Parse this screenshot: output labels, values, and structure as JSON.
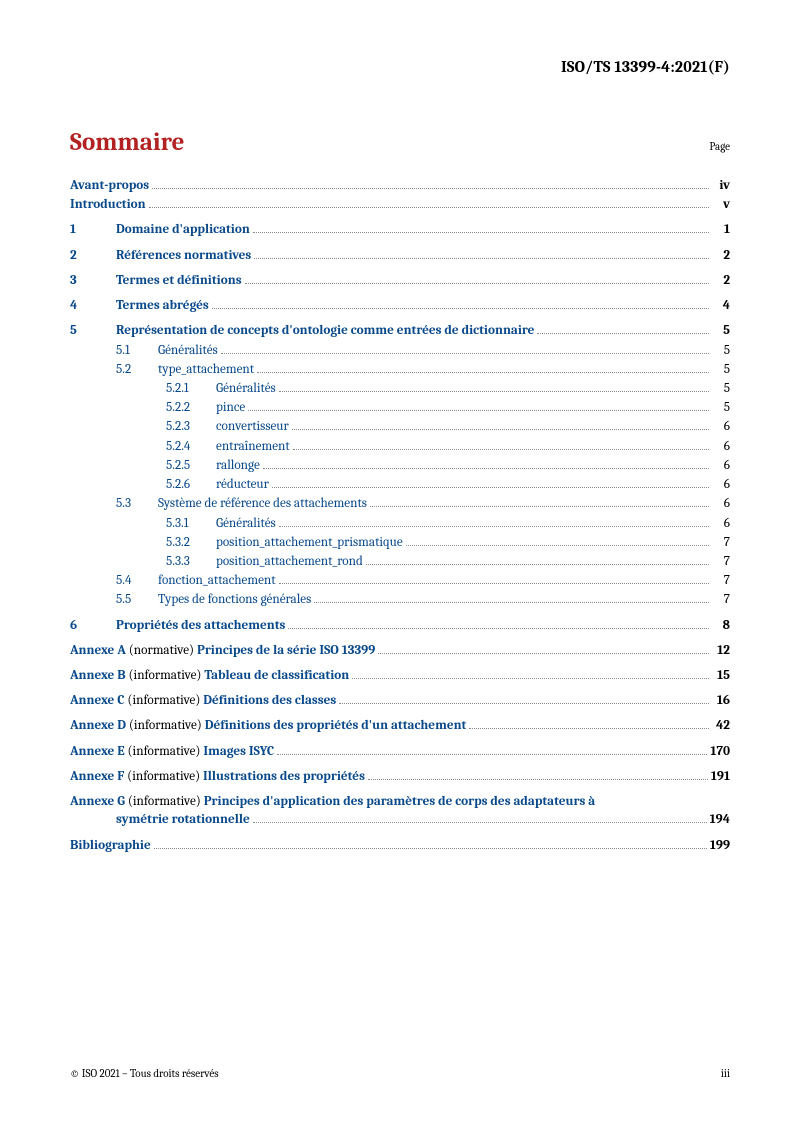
{
  "doc_id": "ISO/TS 13399-4:2021(F)",
  "title": "Sommaire",
  "page_label": "Page",
  "footer_left": "© ISO 2021 – Tous droits réservés",
  "footer_right": "iii",
  "colors": {
    "heading": "#b22222",
    "link": "#0b4a8a",
    "text": "#000000",
    "leader": "#8a8a8a",
    "background": "#ffffff"
  },
  "toc": {
    "front": [
      {
        "label": "Avant-propos",
        "page": "iv"
      },
      {
        "label": "Introduction",
        "page": "v"
      }
    ],
    "sections": [
      {
        "num": "1",
        "label": "Domaine d'application",
        "page": "1"
      },
      {
        "num": "2",
        "label": "Références normatives",
        "page": "2"
      },
      {
        "num": "3",
        "label": "Termes et définitions",
        "page": "2"
      },
      {
        "num": "4",
        "label": "Termes abrégés",
        "page": "4"
      },
      {
        "num": "5",
        "label": "Représentation de concepts d'ontologie comme entrées de dictionnaire",
        "page": "5",
        "subs": [
          {
            "num": "5.1",
            "label": "Généralités",
            "page": "5"
          },
          {
            "num": "5.2",
            "label": "type_attachement",
            "page": "5",
            "subs": [
              {
                "num": "5.2.1",
                "label": "Généralités",
                "page": "5"
              },
              {
                "num": "5.2.2",
                "label": "pince",
                "page": "5"
              },
              {
                "num": "5.2.3",
                "label": "convertisseur",
                "page": "6"
              },
              {
                "num": "5.2.4",
                "label": "entraînement",
                "page": "6"
              },
              {
                "num": "5.2.5",
                "label": "rallonge",
                "page": "6"
              },
              {
                "num": "5.2.6",
                "label": "réducteur",
                "page": "6"
              }
            ]
          },
          {
            "num": "5.3",
            "label": "Système de référence des attachements",
            "page": "6",
            "subs": [
              {
                "num": "5.3.1",
                "label": "Généralités",
                "page": "6"
              },
              {
                "num": "5.3.2",
                "label": "position_attachement_prismatique",
                "page": "7"
              },
              {
                "num": "5.3.3",
                "label": "position_attachement_rond",
                "page": "7"
              }
            ]
          },
          {
            "num": "5.4",
            "label": "fonction_attachement",
            "page": "7"
          },
          {
            "num": "5.5",
            "label": "Types de fonctions générales",
            "page": "7"
          }
        ]
      },
      {
        "num": "6",
        "label": "Propriétés des attachements",
        "page": "8"
      }
    ],
    "annexes": [
      {
        "label": "Annexe A",
        "note": "(normative)",
        "title": "Principes de la série ISO 13399",
        "page": "12"
      },
      {
        "label": "Annexe B",
        "note": "(informative)",
        "title": "Tableau de classification",
        "page": "15"
      },
      {
        "label": "Annexe C",
        "note": "(informative)",
        "title": "Définitions des classes",
        "page": "16"
      },
      {
        "label": "Annexe D",
        "note": "(informative)",
        "title": "Définitions des propriétés d'un attachement",
        "page": "42"
      },
      {
        "label": "Annexe E",
        "note": "(informative)",
        "title": "Images ISYC",
        "page": "170"
      },
      {
        "label": "Annexe F",
        "note": "(informative)",
        "title": "Illustrations des propriétés",
        "page": "191"
      },
      {
        "label": "Annexe G",
        "note": "(informative)",
        "title_line1": "Principes d'application des paramètres de corps des adaptateurs à",
        "title_line2": "symétrie rotationnelle",
        "page": "194"
      }
    ],
    "biblio": {
      "label": "Bibliographie",
      "page": "199"
    }
  }
}
